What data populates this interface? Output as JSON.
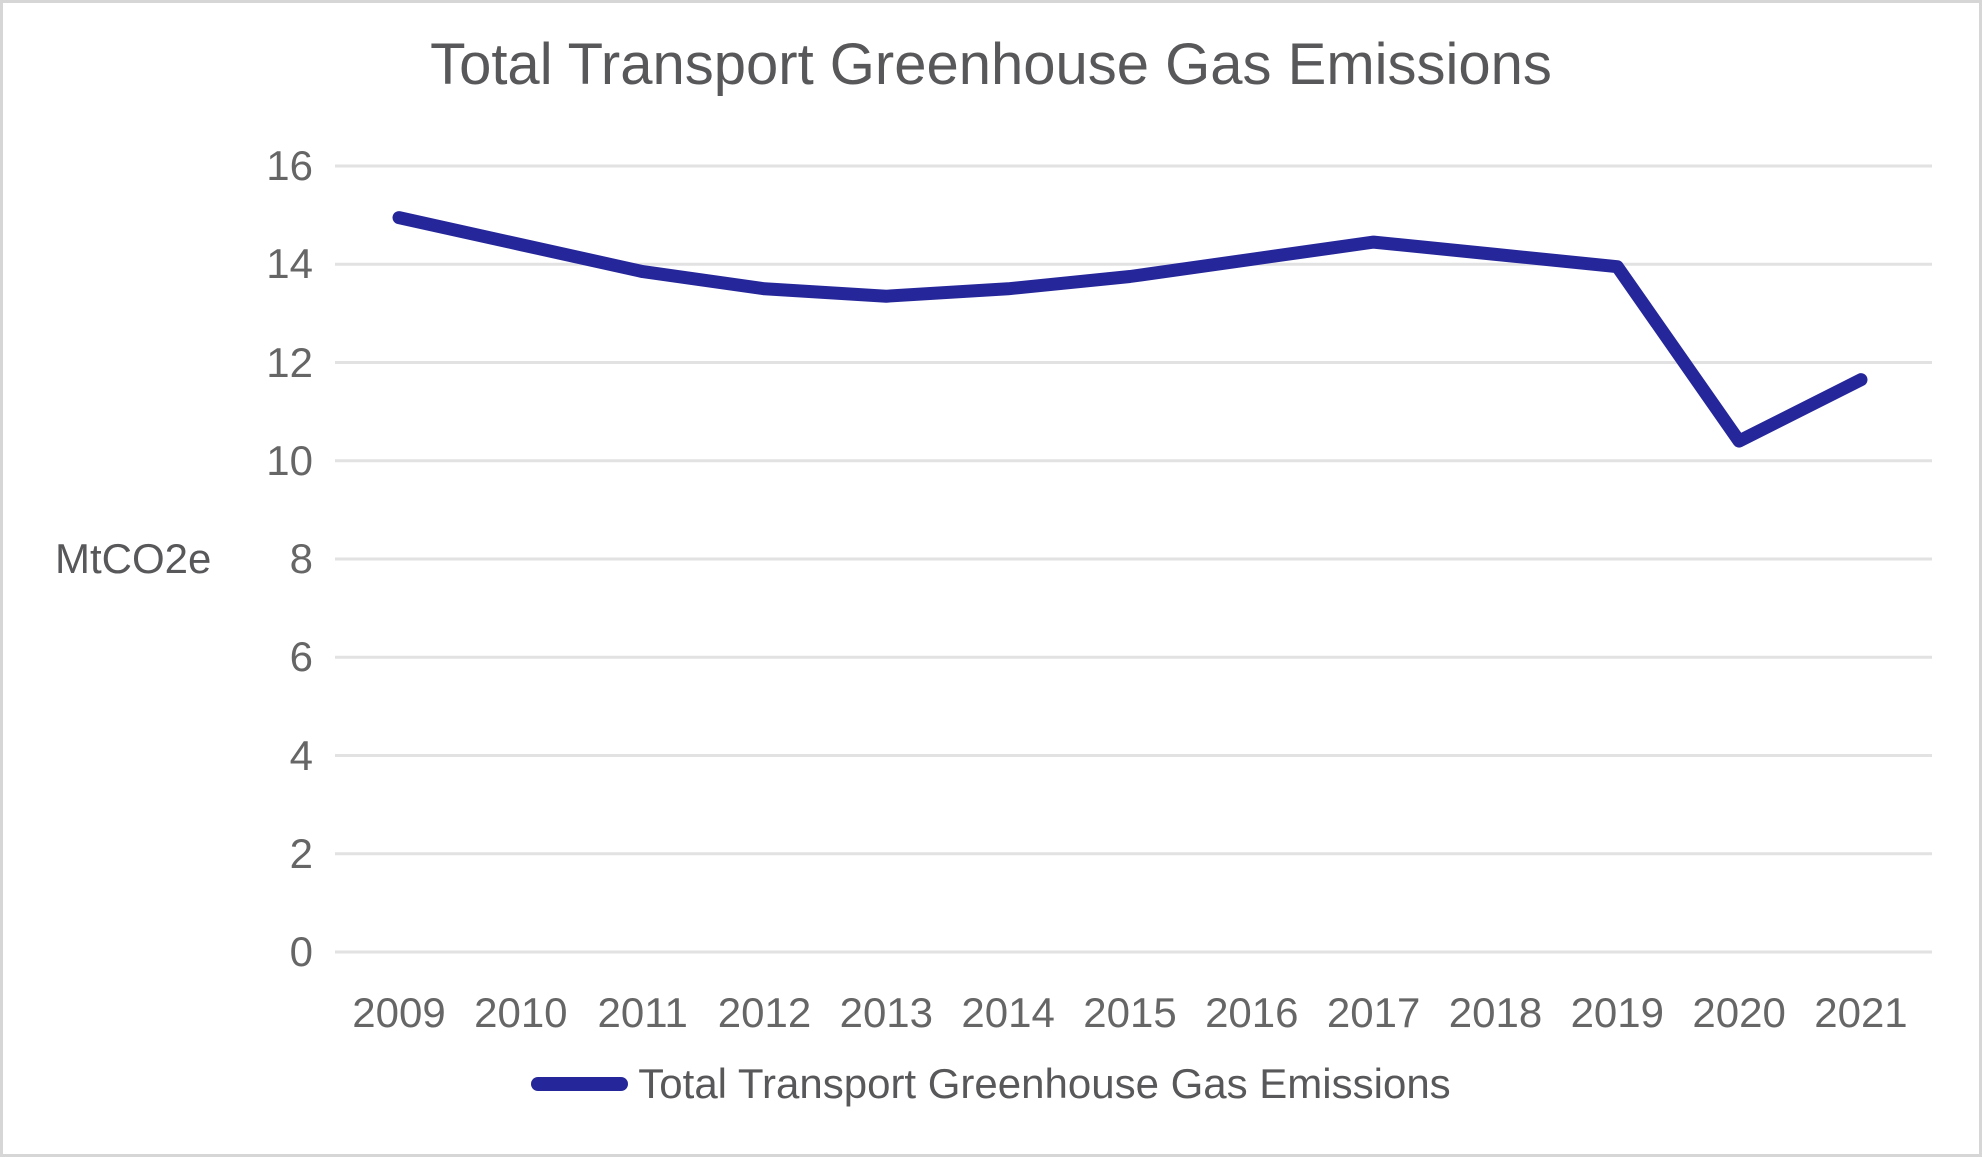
{
  "chart": {
    "title": "Total Transport Greenhouse Gas Emissions",
    "y_axis_label": "MtCO2e"
  },
  "chart_data": {
    "type": "line",
    "title": "Total Transport Greenhouse Gas Emissions",
    "xlabel": "",
    "ylabel": "MtCO2e",
    "categories": [
      "2009",
      "2010",
      "2011",
      "2012",
      "2013",
      "2014",
      "2015",
      "2016",
      "2017",
      "2018",
      "2019",
      "2020",
      "2021"
    ],
    "series": [
      {
        "name": "Total Transport Greenhouse Gas Emissions",
        "values": [
          14.95,
          14.4,
          13.85,
          13.5,
          13.35,
          13.5,
          13.75,
          14.1,
          14.45,
          14.2,
          13.95,
          10.4,
          11.65
        ]
      }
    ],
    "ylim": [
      0,
      16
    ],
    "yticks": [
      0,
      2,
      4,
      6,
      8,
      10,
      12,
      14,
      16
    ],
    "grid": "horizontal",
    "legend_position": "bottom",
    "colors": {
      "line": "#26269B",
      "gridline": "#e2e2e2",
      "title_text": "#58585a",
      "tick_text": "#666666",
      "frame_border": "#d6d6d6"
    }
  },
  "legend": {
    "items": [
      {
        "label": "Total Transport Greenhouse Gas Emissions"
      }
    ]
  }
}
